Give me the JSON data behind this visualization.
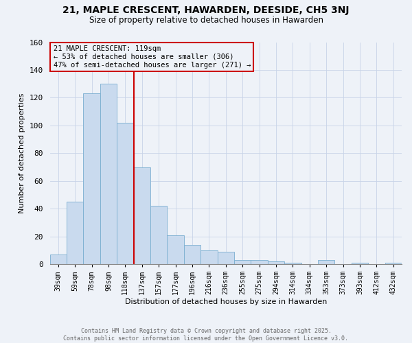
{
  "title": "21, MAPLE CRESCENT, HAWARDEN, DEESIDE, CH5 3NJ",
  "subtitle": "Size of property relative to detached houses in Hawarden",
  "xlabel": "Distribution of detached houses by size in Hawarden",
  "ylabel": "Number of detached properties",
  "categories": [
    "39sqm",
    "59sqm",
    "78sqm",
    "98sqm",
    "118sqm",
    "137sqm",
    "157sqm",
    "177sqm",
    "196sqm",
    "216sqm",
    "236sqm",
    "255sqm",
    "275sqm",
    "294sqm",
    "314sqm",
    "334sqm",
    "353sqm",
    "373sqm",
    "393sqm",
    "412sqm",
    "432sqm"
  ],
  "values": [
    7,
    45,
    123,
    130,
    102,
    70,
    42,
    21,
    14,
    10,
    9,
    3,
    3,
    2,
    1,
    0,
    3,
    0,
    1,
    0,
    1
  ],
  "bar_color": "#c9daee",
  "bar_edge_color": "#7aaed0",
  "property_bin_index": 4,
  "annotation_title": "21 MAPLE CRESCENT: 119sqm",
  "annotation_line1": "← 53% of detached houses are smaller (306)",
  "annotation_line2": "47% of semi-detached houses are larger (271) →",
  "vline_color": "#cc0000",
  "footer_line1": "Contains HM Land Registry data © Crown copyright and database right 2025.",
  "footer_line2": "Contains public sector information licensed under the Open Government Licence v3.0.",
  "ylim": [
    0,
    160
  ],
  "yticks": [
    0,
    20,
    40,
    60,
    80,
    100,
    120,
    140,
    160
  ],
  "background_color": "#eef2f8"
}
